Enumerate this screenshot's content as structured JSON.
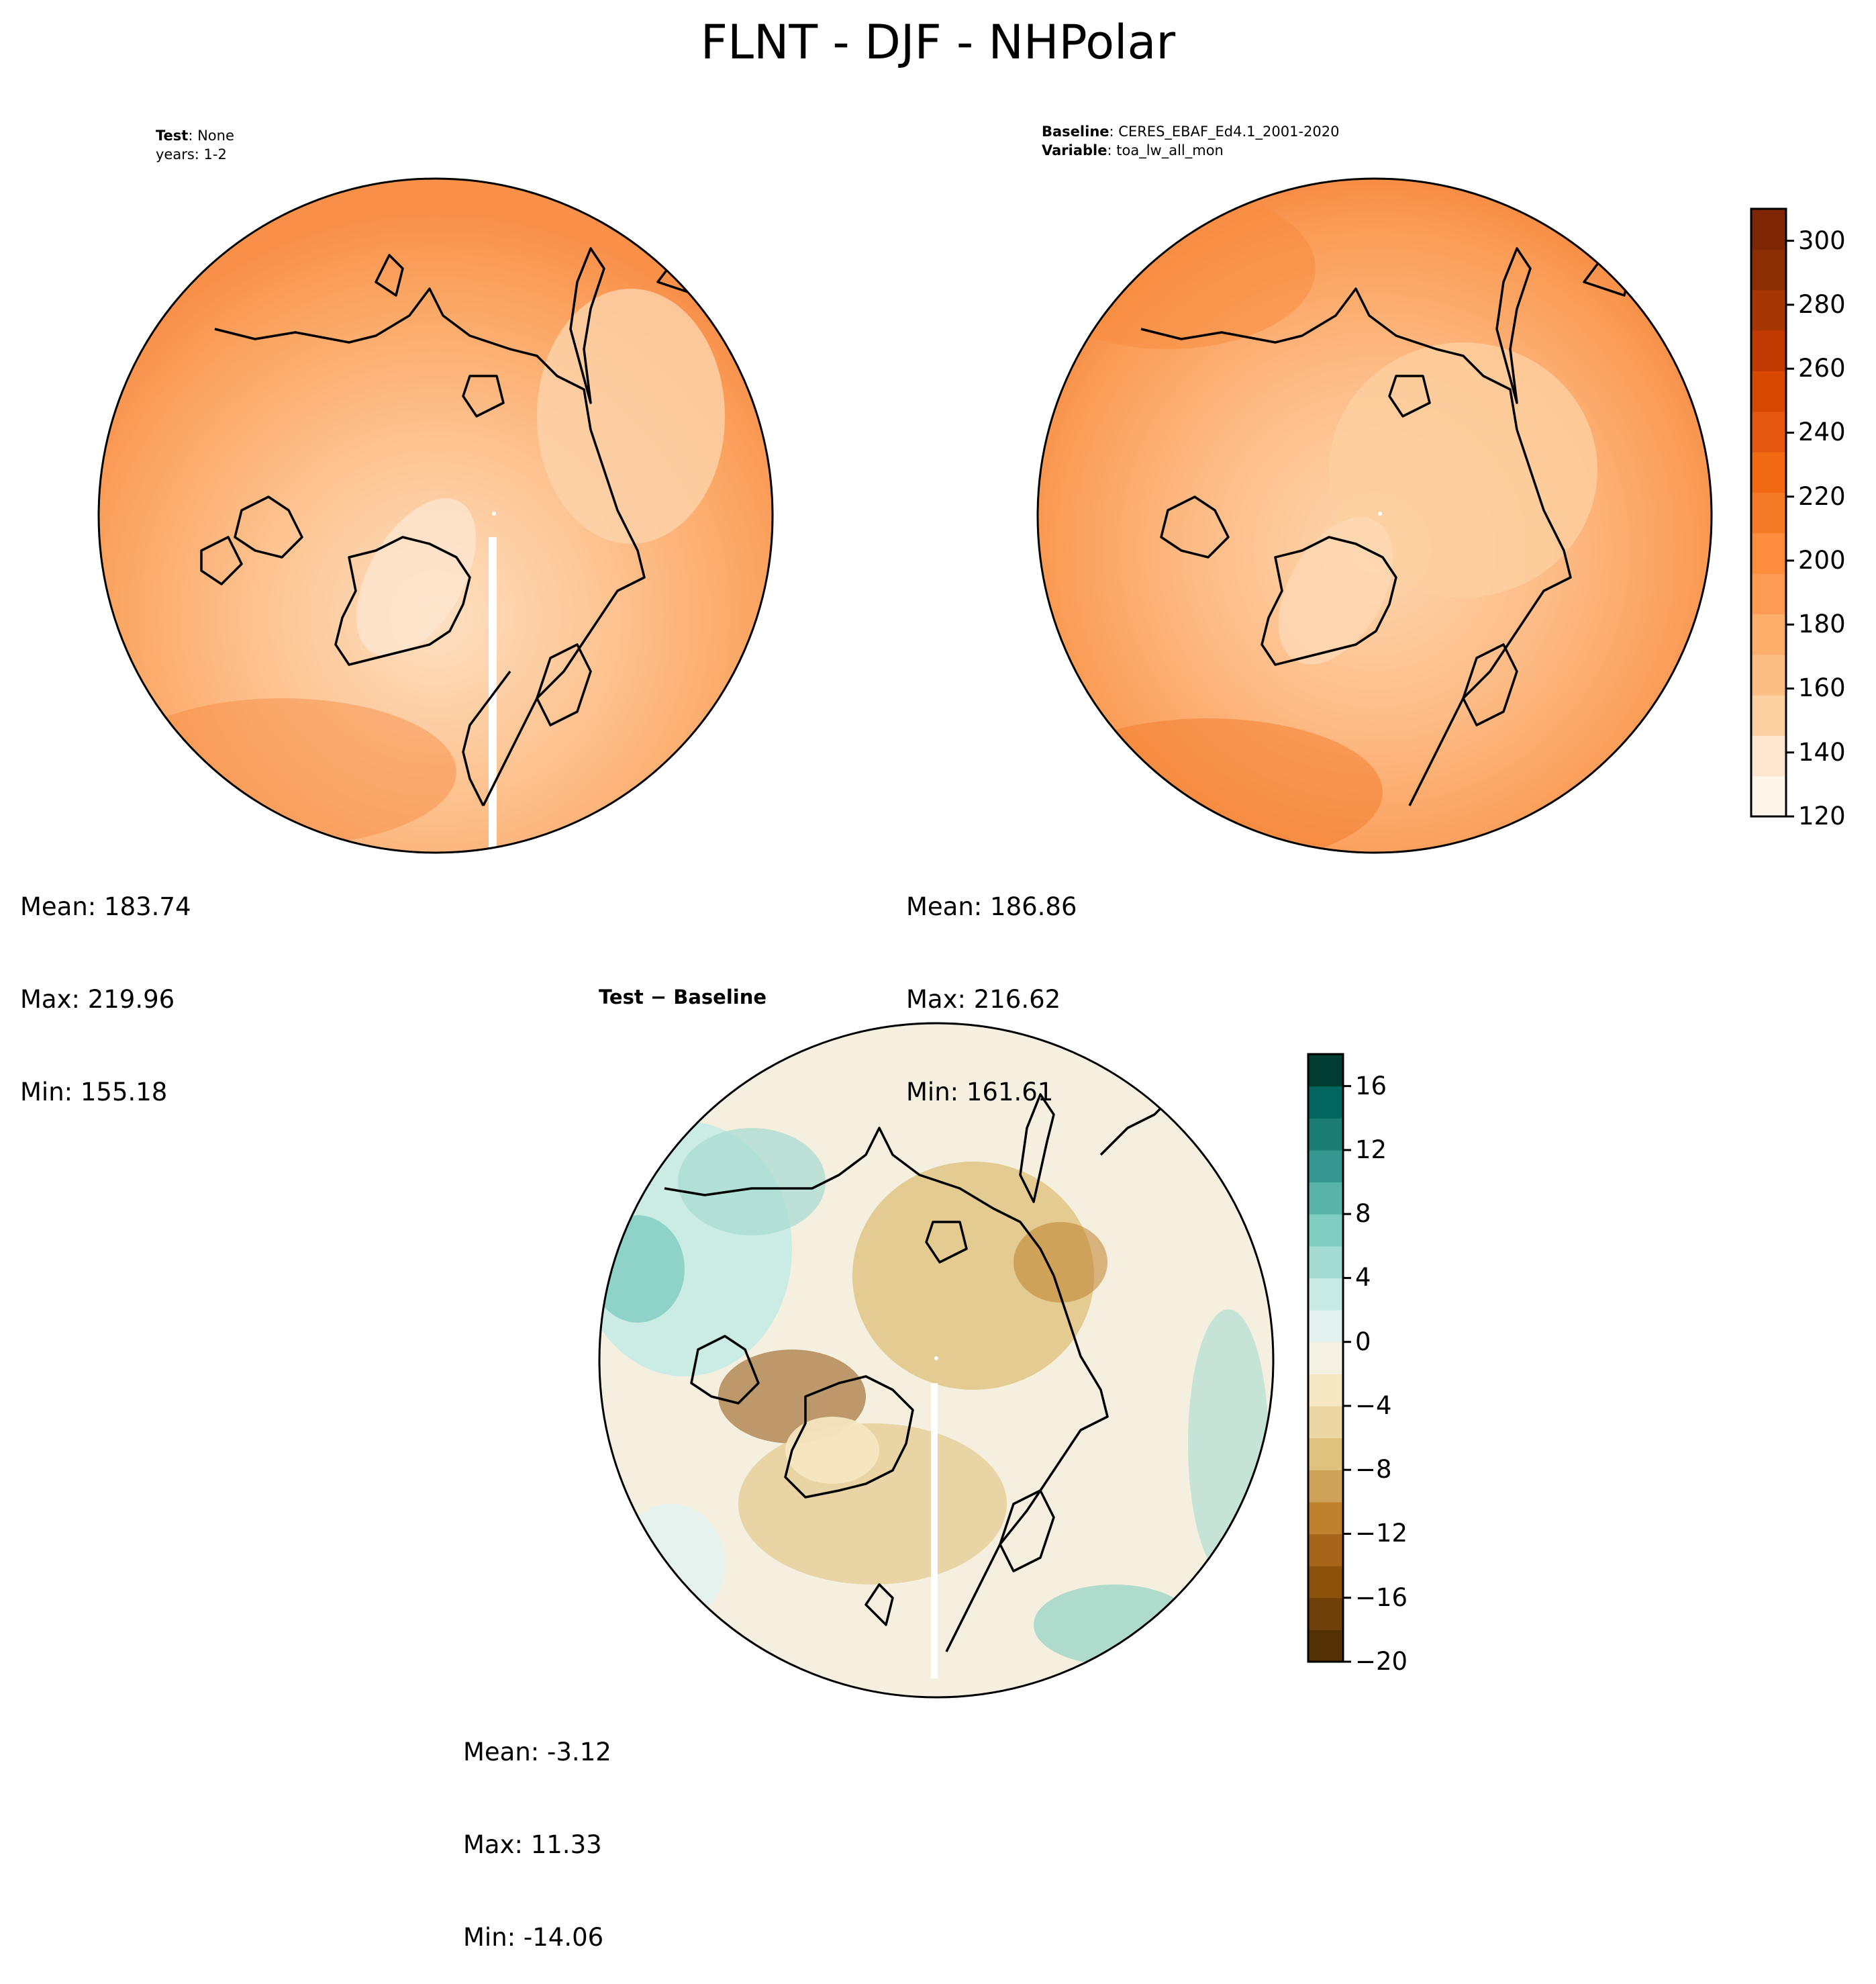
{
  "figure_title": "FLNT - DJF - NHPolar",
  "panels": {
    "test": {
      "label_bold": "Test",
      "label_value": "None",
      "line2": "years: 1-2",
      "stats": {
        "mean": "Mean: 183.74",
        "max": "Max: 219.96",
        "min": "Min: 155.18"
      }
    },
    "baseline": {
      "label_bold": "Baseline",
      "label_value": "CERES_EBAF_Ed4.1_2001-2020",
      "var_bold": "Variable",
      "var_value": "toa_lw_all_mon",
      "stats": {
        "mean": "Mean: 186.86",
        "max": "Max: 216.62",
        "min": "Min: 161.61"
      }
    },
    "diff": {
      "label": "Test − Baseline",
      "stats": {
        "mean": "Mean: -3.12",
        "max": "Max: 11.33",
        "min": "Min: -14.06"
      }
    }
  },
  "chart_data": [
    {
      "type": "heatmap",
      "name": "test-map",
      "projection": "north-polar-stereographic",
      "colormap": "Oranges",
      "stats": {
        "mean": 183.74,
        "max": 219.96,
        "min": 155.18
      }
    },
    {
      "type": "heatmap",
      "name": "baseline-map",
      "projection": "north-polar-stereographic",
      "colormap": "Oranges",
      "stats": {
        "mean": 186.86,
        "max": 216.62,
        "min": 161.61
      },
      "colorbar": {
        "range": [
          120,
          310
        ],
        "ticks": [
          "120",
          "140",
          "160",
          "180",
          "200",
          "220",
          "240",
          "260",
          "280",
          "300"
        ],
        "colors": [
          "#fff5eb",
          "#fee6ce",
          "#fdd0a2",
          "#fdbe85",
          "#fdae6b",
          "#fd9a54",
          "#fd8d3c",
          "#f57a26",
          "#f16913",
          "#e65710",
          "#d94801",
          "#c03a02",
          "#a63603",
          "#8b2e04",
          "#7f2704"
        ]
      }
    },
    {
      "type": "heatmap",
      "name": "difference-map",
      "projection": "north-polar-stereographic",
      "colormap": "BrBG",
      "stats": {
        "mean": -3.12,
        "max": 11.33,
        "min": -14.06
      },
      "colorbar": {
        "range": [
          -20,
          18
        ],
        "ticks": [
          "−20",
          "−16",
          "−12",
          "−8",
          "−4",
          "0",
          "4",
          "8",
          "12",
          "16"
        ],
        "colors": [
          "#543005",
          "#6f4009",
          "#8c510a",
          "#a6651a",
          "#bf812d",
          "#cfa25a",
          "#dfc27d",
          "#ebd6a4",
          "#f6e8c3",
          "#f5f1e2",
          "#e4f2ef",
          "#c7eae5",
          "#a5dcd2",
          "#80cdc1",
          "#5ab3a8",
          "#35978f",
          "#1c7d74",
          "#01665e",
          "#003c30"
        ]
      }
    }
  ]
}
